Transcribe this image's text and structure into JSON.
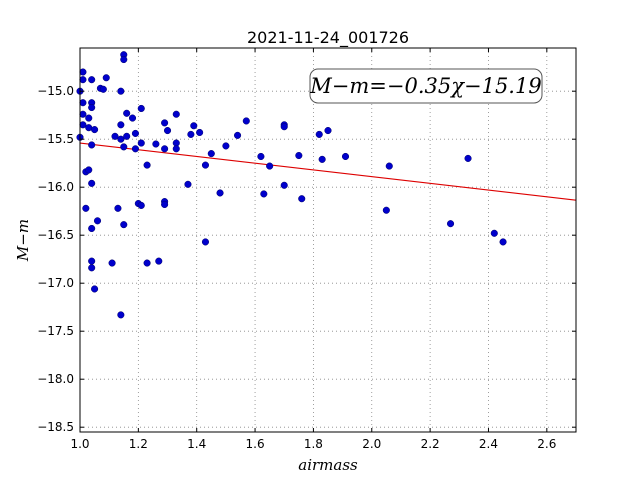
{
  "chart_data": {
    "type": "scatter",
    "title": "2021-11-24_001726",
    "xlabel": "airmass",
    "ylabel": "M−m",
    "xlim": [
      1.0,
      2.7
    ],
    "ylim": [
      -18.55,
      -14.55
    ],
    "xticks": [
      1.0,
      1.2,
      1.4,
      1.6,
      1.8,
      2.0,
      2.2,
      2.4,
      2.6
    ],
    "xtick_labels": [
      "1.0",
      "1.2",
      "1.4",
      "1.6",
      "1.8",
      "2.0",
      "2.2",
      "2.4",
      "2.6"
    ],
    "yticks": [
      -15.0,
      -15.5,
      -16.0,
      -16.5,
      -17.0,
      -17.5,
      -18.0,
      -18.5
    ],
    "ytick_labels": [
      "−15.0",
      "−15.5",
      "−16.0",
      "−16.5",
      "−17.0",
      "−17.5",
      "−18.0",
      "−18.5"
    ],
    "grid": true,
    "annotation": "M−m=−0.35χ−15.19",
    "annotation_position": "top-right",
    "colors": {
      "points": "#0000cc",
      "fit": "#dd0000"
    },
    "fit": {
      "slope": -0.35,
      "intercept": -15.19
    },
    "points": [
      [
        1.01,
        -14.8
      ],
      [
        1.01,
        -14.88
      ],
      [
        1.04,
        -14.88
      ],
      [
        1.0,
        -15.0
      ],
      [
        1.01,
        -15.12
      ],
      [
        1.04,
        -15.12
      ],
      [
        1.04,
        -15.17
      ],
      [
        1.01,
        -15.24
      ],
      [
        1.03,
        -15.28
      ],
      [
        1.01,
        -15.35
      ],
      [
        1.03,
        -15.38
      ],
      [
        1.05,
        -15.4
      ],
      [
        1.0,
        -15.48
      ],
      [
        1.04,
        -15.56
      ],
      [
        1.02,
        -15.84
      ],
      [
        1.03,
        -15.82
      ],
      [
        1.04,
        -15.96
      ],
      [
        1.02,
        -16.22
      ],
      [
        1.06,
        -16.35
      ],
      [
        1.04,
        -16.43
      ],
      [
        1.04,
        -16.77
      ],
      [
        1.04,
        -16.84
      ],
      [
        1.05,
        -17.06
      ],
      [
        1.07,
        -14.97
      ],
      [
        1.08,
        -14.98
      ],
      [
        1.09,
        -14.86
      ],
      [
        1.15,
        -14.62
      ],
      [
        1.15,
        -14.67
      ],
      [
        1.14,
        -15.0
      ],
      [
        1.21,
        -15.18
      ],
      [
        1.16,
        -15.23
      ],
      [
        1.18,
        -15.28
      ],
      [
        1.14,
        -15.35
      ],
      [
        1.12,
        -15.47
      ],
      [
        1.19,
        -15.44
      ],
      [
        1.14,
        -15.5
      ],
      [
        1.15,
        -15.58
      ],
      [
        1.16,
        -15.47
      ],
      [
        1.19,
        -15.6
      ],
      [
        1.21,
        -15.54
      ],
      [
        1.13,
        -16.22
      ],
      [
        1.2,
        -16.17
      ],
      [
        1.21,
        -16.19
      ],
      [
        1.15,
        -16.39
      ],
      [
        1.11,
        -16.79
      ],
      [
        1.23,
        -16.79
      ],
      [
        1.27,
        -16.77
      ],
      [
        1.14,
        -17.33
      ],
      [
        1.23,
        -15.77
      ],
      [
        1.26,
        -15.55
      ],
      [
        1.29,
        -15.33
      ],
      [
        1.3,
        -15.41
      ],
      [
        1.33,
        -15.24
      ],
      [
        1.29,
        -15.6
      ],
      [
        1.33,
        -15.54
      ],
      [
        1.33,
        -15.6
      ],
      [
        1.29,
        -16.15
      ],
      [
        1.29,
        -16.18
      ],
      [
        1.37,
        -15.97
      ],
      [
        1.38,
        -15.45
      ],
      [
        1.39,
        -15.36
      ],
      [
        1.41,
        -15.43
      ],
      [
        1.43,
        -15.77
      ],
      [
        1.45,
        -15.65
      ],
      [
        1.48,
        -16.06
      ],
      [
        1.43,
        -16.57
      ],
      [
        1.5,
        -15.57
      ],
      [
        1.54,
        -15.46
      ],
      [
        1.57,
        -15.31
      ],
      [
        1.62,
        -15.68
      ],
      [
        1.65,
        -15.78
      ],
      [
        1.63,
        -16.07
      ],
      [
        1.7,
        -15.35
      ],
      [
        1.7,
        -15.37
      ],
      [
        1.7,
        -15.98
      ],
      [
        1.75,
        -15.67
      ],
      [
        1.76,
        -16.12
      ],
      [
        1.82,
        -15.45
      ],
      [
        1.83,
        -15.71
      ],
      [
        1.85,
        -15.41
      ],
      [
        1.91,
        -15.68
      ],
      [
        2.05,
        -16.24
      ],
      [
        2.06,
        -15.78
      ],
      [
        2.27,
        -16.38
      ],
      [
        2.33,
        -15.7
      ],
      [
        2.42,
        -16.48
      ],
      [
        2.45,
        -16.57
      ]
    ]
  }
}
